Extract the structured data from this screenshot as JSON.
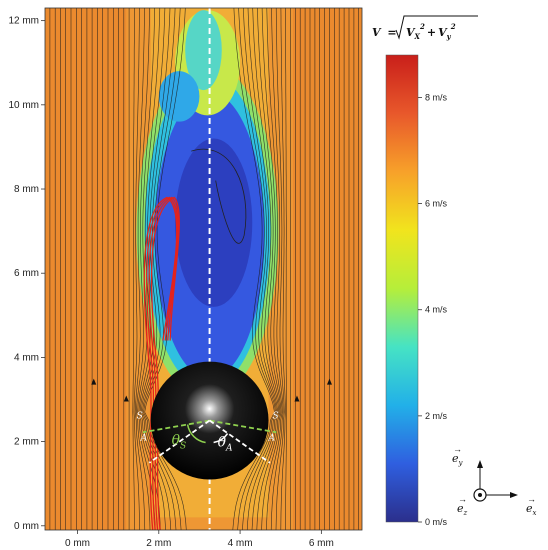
{
  "chart_data": {
    "type": "heatmap",
    "title": "",
    "xlabel": "",
    "ylabel": "",
    "x_ticks": [
      "0 mm",
      "2 mm",
      "4 mm",
      "6 mm"
    ],
    "y_ticks": [
      "0 mm",
      "2 mm",
      "4 mm",
      "6 mm",
      "8 mm",
      "10 mm",
      "12 mm"
    ],
    "xlim": [
      -0.8,
      7.0
    ],
    "ylim": [
      -0.1,
      12.3
    ],
    "colorbar": {
      "formula": "V = √(Vx² + Vy²)",
      "formula_lhs": "V",
      "formula_eq": "=",
      "formula_vx": "V",
      "formula_vx_sub": "X",
      "formula_vy": "V",
      "formula_vy_sub": "y",
      "formula_exp": "2",
      "range": [
        0,
        8.8
      ],
      "unit": "m/s",
      "ticks": [
        "0 m/s",
        "2 m/s",
        "4 m/s",
        "6 m/s",
        "8 m/s"
      ],
      "tick_values": [
        0,
        2,
        4,
        6,
        8
      ],
      "colors": [
        "#2b2f8c",
        "#2f5fe0",
        "#22b0e8",
        "#46e3c4",
        "#b6ee3a",
        "#f1e41d",
        "#f7a12a",
        "#e8582b",
        "#c91f1a"
      ]
    },
    "sphere": {
      "center_x": 3.25,
      "center_y": 2.5,
      "radius": 1.45
    },
    "symmetry_axis_x": 3.25,
    "annotations": {
      "separation_angle": "θ",
      "separation_sub": "S",
      "attachment_angle": "θ",
      "attachment_sub": "A",
      "point_S": "S",
      "point_A": "A"
    },
    "frame_axes": {
      "ey": "e",
      "ey_sub": "y",
      "ez": "e",
      "ez_sub": "z",
      "ex": "e",
      "ex_sub": "x"
    }
  }
}
